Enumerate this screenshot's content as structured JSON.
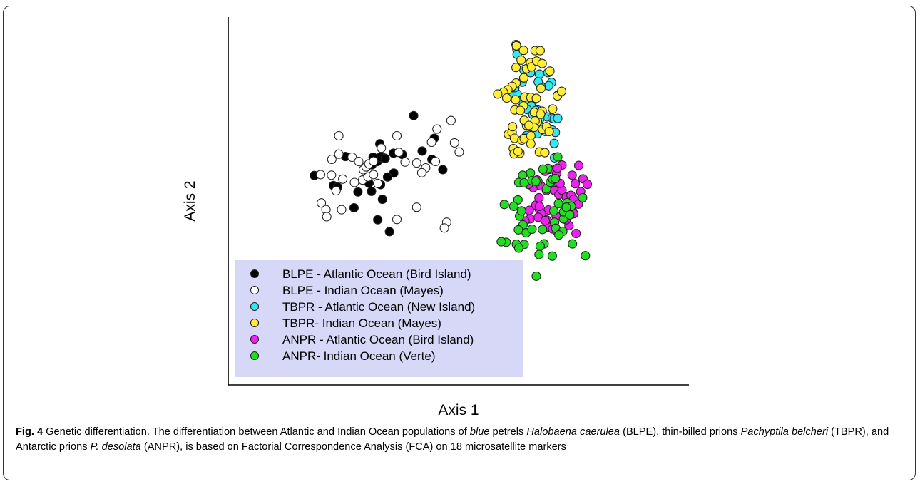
{
  "chart_data": {
    "type": "scatter",
    "title": "",
    "xlabel": "Axis 1",
    "ylabel": "Axis 2",
    "xlim": [
      0,
      100
    ],
    "ylim": [
      0,
      100
    ],
    "grid": false,
    "legend_position": "bottom-left",
    "series": [
      {
        "name": "BLPE - Atlantic Ocean (Bird Island)",
        "fill": "#000000",
        "points": [
          [
            3.8,
            56.5
          ],
          [
            29.3,
            76.1
          ],
          [
            18.6,
            60.0
          ],
          [
            20.0,
            61.1
          ],
          [
            21.6,
            62.3
          ],
          [
            24.1,
            63.8
          ],
          [
            26.4,
            63.4
          ],
          [
            24.2,
            57.3
          ],
          [
            11.8,
            62.7
          ],
          [
            20.6,
            66.9
          ],
          [
            20.7,
            62.5
          ],
          [
            22.0,
            62.1
          ],
          [
            18.9,
            62.5
          ],
          [
            8.7,
            53.2
          ],
          [
            20.8,
            53.5
          ],
          [
            31.5,
            64.5
          ],
          [
            34.6,
            68.7
          ],
          [
            36.8,
            58.4
          ],
          [
            9.8,
            52.7
          ],
          [
            21.3,
            48.7
          ],
          [
            18.5,
            51.3
          ],
          [
            34.0,
            61.8
          ],
          [
            15.0,
            51.1
          ],
          [
            22.6,
            56.0
          ],
          [
            20.1,
            42.0
          ],
          [
            14.0,
            45.9
          ],
          [
            23.1,
            38.1
          ],
          [
            17.8,
            54.0
          ]
        ]
      },
      {
        "name": "BLPE - Indian Ocean (Mayes)",
        "fill": "#ffffff",
        "points": [
          [
            8.3,
            61.8
          ],
          [
            10.1,
            69.5
          ],
          [
            10.1,
            63.5
          ],
          [
            13.5,
            62.5
          ],
          [
            15.2,
            61.1
          ],
          [
            16.4,
            58.4
          ],
          [
            17.1,
            59.3
          ],
          [
            17.8,
            60.3
          ],
          [
            19.0,
            61.2
          ],
          [
            16.2,
            55.0
          ],
          [
            17.6,
            56.0
          ],
          [
            19.0,
            56.8
          ],
          [
            20.1,
            53.9
          ],
          [
            14.1,
            54.2
          ],
          [
            11.1,
            55.3
          ],
          [
            8.2,
            56.6
          ],
          [
            5.4,
            56.8
          ],
          [
            9.4,
            51.5
          ],
          [
            5.6,
            47.5
          ],
          [
            6.8,
            45.3
          ],
          [
            10.8,
            45.3
          ],
          [
            7.0,
            43.0
          ],
          [
            27.1,
            60.9
          ],
          [
            25.0,
            69.5
          ],
          [
            25.5,
            64.1
          ],
          [
            25.0,
            42.1
          ],
          [
            30.1,
            60.6
          ],
          [
            32.4,
            59.0
          ],
          [
            33.9,
            67.4
          ],
          [
            35.3,
            71.7
          ],
          [
            34.9,
            61.1
          ],
          [
            31.4,
            57.4
          ],
          [
            30.1,
            46.1
          ],
          [
            37.8,
            41.2
          ],
          [
            37.2,
            39.3
          ],
          [
            38.9,
            74.5
          ],
          [
            39.8,
            67.2
          ],
          [
            41.0,
            64.2
          ],
          [
            21.0,
            65.5
          ]
        ]
      },
      {
        "name": "TBPR - Atlantic Ocean (New Island)",
        "fill": "#33e8f0",
        "points": [
          [
            55.8,
            98.0
          ],
          [
            55.9,
            96.2
          ],
          [
            57.6,
            91.2
          ],
          [
            55.9,
            83.2
          ],
          [
            53.8,
            83.2
          ],
          [
            56.8,
            81.0
          ],
          [
            58.3,
            81.1
          ],
          [
            55.3,
            85.3
          ],
          [
            57.2,
            87.1
          ],
          [
            57.6,
            88.5
          ],
          [
            59.3,
            90.2
          ],
          [
            61.6,
            89.7
          ],
          [
            63.8,
            90.2
          ],
          [
            64.7,
            87.0
          ],
          [
            64.0,
            85.9
          ],
          [
            62.0,
            85.8
          ],
          [
            61.3,
            87.2
          ],
          [
            59.9,
            80.9
          ],
          [
            59.5,
            79.3
          ],
          [
            61.1,
            78.0
          ],
          [
            60.7,
            77.8
          ],
          [
            61.5,
            76.8
          ],
          [
            62.8,
            76.0
          ],
          [
            63.6,
            75.7
          ],
          [
            64.9,
            75.3
          ],
          [
            65.4,
            75.1
          ],
          [
            66.3,
            75.2
          ],
          [
            60.7,
            73.7
          ],
          [
            60.4,
            73.0
          ],
          [
            59.3,
            72.5
          ],
          [
            62.1,
            72.2
          ],
          [
            64.9,
            71.4
          ],
          [
            65.7,
            70.6
          ],
          [
            61.1,
            70.2
          ],
          [
            58.3,
            69.6
          ],
          [
            57.7,
            68.7
          ],
          [
            65.4,
            67.0
          ],
          [
            65.5,
            62.3
          ],
          [
            58.5,
            78.1
          ],
          [
            59.9,
            76.5
          ],
          [
            66.3,
            82.8
          ],
          [
            61.7,
            75.0
          ],
          [
            63.2,
            70.9
          ]
        ]
      },
      {
        "name": "TBPR- Indian Ocean (Mayes)",
        "fill": "#ffee33",
        "points": [
          [
            55.6,
            99.4
          ],
          [
            55.7,
            99.0
          ],
          [
            57.5,
            97.5
          ],
          [
            60.5,
            97.4
          ],
          [
            61.8,
            97.4
          ],
          [
            56.9,
            94.3
          ],
          [
            55.6,
            91.9
          ],
          [
            58.3,
            91.5
          ],
          [
            59.3,
            93.5
          ],
          [
            59.6,
            92.1
          ],
          [
            60.9,
            94.0
          ],
          [
            62.3,
            93.2
          ],
          [
            64.3,
            90.7
          ],
          [
            57.6,
            88.5
          ],
          [
            55.6,
            86.8
          ],
          [
            54.6,
            85.7
          ],
          [
            53.5,
            84.6
          ],
          [
            52.4,
            83.8
          ],
          [
            50.9,
            83.2
          ],
          [
            53.2,
            81.9
          ],
          [
            55.5,
            81.3
          ],
          [
            57.8,
            82.2
          ],
          [
            59.4,
            82.1
          ],
          [
            57.5,
            79.3
          ],
          [
            55.3,
            78.0
          ],
          [
            56.7,
            77.8
          ],
          [
            60.3,
            77.2
          ],
          [
            62.3,
            77.6
          ],
          [
            61.1,
            74.2
          ],
          [
            58.3,
            72.9
          ],
          [
            62.4,
            71.6
          ],
          [
            63.4,
            72.5
          ],
          [
            64.1,
            70.9
          ],
          [
            53.6,
            70.0
          ],
          [
            54.6,
            70.6
          ],
          [
            55.2,
            68.7
          ],
          [
            57.1,
            68.1
          ],
          [
            57.7,
            68.6
          ],
          [
            59.4,
            66.9
          ],
          [
            61.6,
            64.2
          ],
          [
            54.9,
            65.3
          ],
          [
            56.6,
            63.8
          ],
          [
            63.0,
            64.0
          ],
          [
            65.0,
            78.3
          ],
          [
            66.2,
            82.6
          ],
          [
            67.3,
            84.1
          ],
          [
            54.7,
            72.5
          ],
          [
            57.7,
            74.6
          ],
          [
            60.8,
            81.8
          ],
          [
            62.0,
            85.1
          ],
          [
            60.5,
            74.4
          ],
          [
            55.1,
            63.6
          ],
          [
            60.2,
            72.3
          ],
          [
            61.9,
            76.6
          ],
          [
            56.1,
            64.4
          ],
          [
            58.9,
            72.9
          ],
          [
            59.4,
            69.5
          ]
        ]
      },
      {
        "name": "ANPR - Atlantic Ocean (Bird Island)",
        "fill": "#ee22ee",
        "points": [
          [
            67.4,
            59.9
          ],
          [
            66.0,
            57.2
          ],
          [
            63.1,
            57.9
          ],
          [
            64.2,
            58.5
          ],
          [
            66.2,
            58.9
          ],
          [
            70.0,
            56.6
          ],
          [
            66.3,
            52.9
          ],
          [
            71.7,
            59.8
          ],
          [
            72.8,
            55.4
          ],
          [
            61.0,
            55.0
          ],
          [
            60.0,
            52.5
          ],
          [
            63.4,
            51.6
          ],
          [
            65.5,
            51.6
          ],
          [
            66.6,
            50.2
          ],
          [
            67.4,
            51.7
          ],
          [
            68.5,
            49.4
          ],
          [
            69.7,
            50.0
          ],
          [
            70.8,
            53.8
          ],
          [
            72.2,
            51.2
          ],
          [
            73.9,
            53.6
          ],
          [
            70.4,
            48.7
          ],
          [
            71.6,
            47.1
          ],
          [
            70.2,
            44.6
          ],
          [
            61.5,
            45.6
          ],
          [
            63.9,
            45.2
          ],
          [
            62.1,
            44.0
          ],
          [
            60.7,
            46.8
          ],
          [
            59.0,
            45.1
          ],
          [
            59.2,
            42.3
          ],
          [
            57.9,
            41.6
          ],
          [
            61.3,
            42.8
          ],
          [
            63.5,
            41.9
          ],
          [
            63.9,
            39.5
          ],
          [
            65.0,
            39.0
          ],
          [
            66.1,
            38.3
          ],
          [
            67.3,
            38.1
          ],
          [
            69.2,
            40.1
          ],
          [
            71.0,
            37.5
          ],
          [
            70.4,
            44.0
          ],
          [
            65.9,
            43.2
          ],
          [
            61.6,
            46.4
          ],
          [
            63.1,
            41.7
          ],
          [
            58.8,
            53.6
          ],
          [
            61.5,
            49.2
          ],
          [
            68.5,
            42.0
          ],
          [
            66.9,
            53.9
          ],
          [
            62.0,
            53.1
          ]
        ]
      },
      {
        "name": "ANPR- Indian Ocean (Verte)",
        "fill": "#22dd22",
        "points": [
          [
            66.3,
            62.6
          ],
          [
            63.8,
            58.8
          ],
          [
            62.5,
            58.6
          ],
          [
            59.3,
            57.3
          ],
          [
            57.3,
            56.6
          ],
          [
            56.3,
            54.2
          ],
          [
            57.7,
            54.1
          ],
          [
            59.7,
            54.8
          ],
          [
            61.2,
            54.6
          ],
          [
            63.4,
            52.1
          ],
          [
            64.4,
            54.3
          ],
          [
            65.0,
            55.3
          ],
          [
            65.7,
            55.5
          ],
          [
            56.1,
            48.5
          ],
          [
            52.6,
            47.0
          ],
          [
            55.0,
            46.4
          ],
          [
            56.5,
            43.2
          ],
          [
            57.0,
            44.9
          ],
          [
            57.4,
            40.3
          ],
          [
            56.2,
            38.7
          ],
          [
            58.2,
            37.7
          ],
          [
            59.7,
            38.9
          ],
          [
            62.4,
            38.8
          ],
          [
            65.5,
            41.2
          ],
          [
            67.8,
            42.3
          ],
          [
            66.5,
            47.3
          ],
          [
            68.7,
            47.6
          ],
          [
            69.8,
            46.4
          ],
          [
            72.7,
            49.2
          ],
          [
            65.3,
            44.9
          ],
          [
            67.8,
            44.6
          ],
          [
            69.4,
            43.6
          ],
          [
            65.8,
            39.2
          ],
          [
            62.8,
            34.1
          ],
          [
            61.8,
            33.3
          ],
          [
            57.7,
            33.9
          ],
          [
            55.7,
            34.0
          ],
          [
            53.1,
            34.6
          ],
          [
            51.8,
            34.8
          ],
          [
            61.5,
            30.6
          ],
          [
            56.3,
            32.7
          ],
          [
            68.5,
            46.1
          ],
          [
            73.4,
            30.2
          ],
          [
            70.1,
            34.1
          ],
          [
            64.9,
            30.1
          ],
          [
            60.8,
            23.5
          ],
          [
            67.6,
            38.2
          ],
          [
            66.6,
            37.0
          ],
          [
            60.7,
            54.6
          ]
        ]
      }
    ]
  },
  "caption": {
    "label": "Fig. 4",
    "text_1": " Genetic differentiation. The differentiation between Atlantic and Indian Ocean populations of ",
    "italic_1": "blue",
    "text_2": " petrels ",
    "italic_2": "Halobaena caerulea",
    "text_3": " (BLPE), thin-billed prions ",
    "italic_3": "Pachyptila belcheri",
    "text_4": " (TBPR), and Antarctic prions ",
    "italic_4": "P. desolata",
    "text_5": " (ANPR), is based on Factorial Correspondence Analysis (FCA) on 18 microsatellite markers"
  }
}
